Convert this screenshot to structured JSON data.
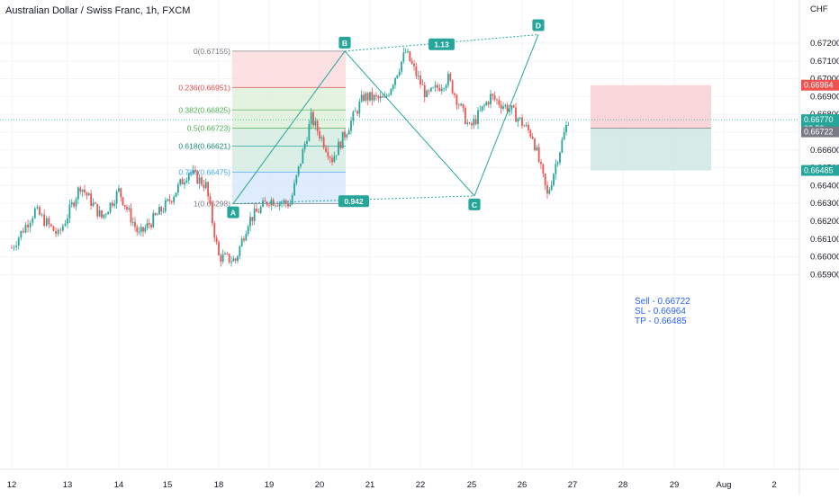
{
  "title": "Australian Dollar / Swiss Franc, 1h, FXCM",
  "currency": "CHF",
  "colors": {
    "up": "#26a69a",
    "down": "#ef5350",
    "pattern": "#26a69a",
    "grid": "#f0f3fa",
    "stop_zone": "#f8cfd2",
    "target_zone": "#cfe9e4",
    "accent_blue": "#2962ff"
  },
  "chart_data": {
    "type": "candlestick",
    "symbol": "Australian Dollar / Swiss Franc",
    "interval": "1h",
    "source": "FXCM",
    "y_axis": {
      "ticks": [
        "0.67200",
        "0.67100",
        "0.67000",
        "0.66900",
        "0.66800",
        "0.66700",
        "0.66600",
        "0.66500",
        "0.66400",
        "0.66300",
        "0.66200",
        "0.66100",
        "0.66000",
        "0.65900"
      ],
      "range": [
        0.6586,
        0.6728
      ]
    },
    "x_axis": {
      "ticks": [
        "12",
        "13",
        "14",
        "15",
        "18",
        "19",
        "20",
        "21",
        "22",
        "25",
        "26",
        "27",
        "28",
        "29",
        "Aug",
        "2"
      ]
    },
    "harmonic_pattern": {
      "points": [
        {
          "label": "A",
          "value": 0.66298
        },
        {
          "label": "B",
          "value": 0.67155
        },
        {
          "label": "C",
          "value": 0.66342
        },
        {
          "label": "D",
          "value": 0.67248
        }
      ],
      "ratios": {
        "AC_ratio": "0.942",
        "BD_ratio": "1.13"
      }
    },
    "fibonacci": [
      {
        "label": "0(0.67155)",
        "level": 0,
        "value": 0.67155
      },
      {
        "label": "0.236(0.66951)",
        "level": 0.236,
        "value": 0.66951
      },
      {
        "label": "0.382(0.66825)",
        "level": 0.382,
        "value": 0.66825
      },
      {
        "label": "0.5(0.66723)",
        "level": 0.5,
        "value": 0.66723
      },
      {
        "label": "0.618(0.66621)",
        "level": 0.618,
        "value": 0.66621
      },
      {
        "label": "0.786(0.66475)",
        "level": 0.786,
        "value": 0.66475
      },
      {
        "label": "1(0.66298)",
        "level": 1,
        "value": 0.66298
      }
    ],
    "position": {
      "side": "short",
      "entry": 0.66722,
      "stop": 0.66964,
      "target": 0.66485
    },
    "price_labels": [
      {
        "text": "0.66964",
        "value": 0.66964,
        "kind": "stop"
      },
      {
        "text": "0.66770",
        "sub": "28:59",
        "value": 0.6677,
        "kind": "last"
      },
      {
        "text": "0.66722",
        "value": 0.66722,
        "kind": "entry"
      },
      {
        "text": "0.66485",
        "value": 0.66485,
        "kind": "target"
      }
    ],
    "last_price": 0.6677
  },
  "trade_note": "Sell - 0.66722\nSL - 0.66964\nTP - 0.66485"
}
